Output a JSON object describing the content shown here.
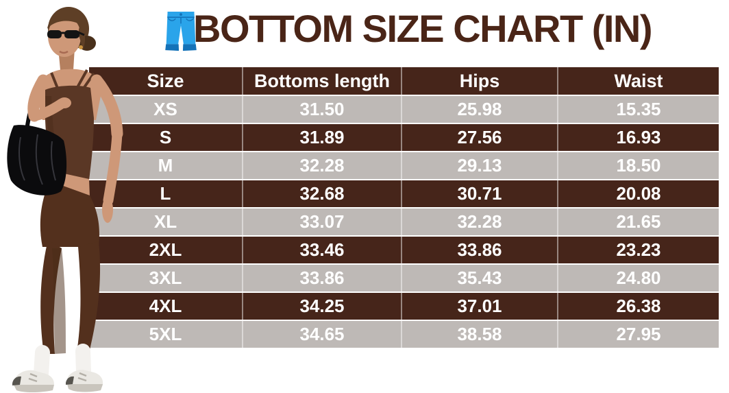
{
  "header": {
    "icon": "jeans-icon",
    "title": "BOTTOM SIZE CHART (IN)"
  },
  "chart_data": {
    "type": "table",
    "title": "BOTTOM SIZE CHART (IN)",
    "unit": "inches",
    "columns": [
      "Size",
      "Bottoms length",
      "Hips",
      "Waist"
    ],
    "rows": [
      [
        "XS",
        "31.50",
        "25.98",
        "15.35"
      ],
      [
        "S",
        "31.89",
        "27.56",
        "16.93"
      ],
      [
        "M",
        "32.28",
        "29.13",
        "18.50"
      ],
      [
        "L",
        "32.68",
        "30.71",
        "20.08"
      ],
      [
        "XL",
        "33.07",
        "32.28",
        "21.65"
      ],
      [
        "2XL",
        "33.46",
        "33.86",
        "23.23"
      ],
      [
        "3XL",
        "33.86",
        "35.43",
        "24.80"
      ],
      [
        "4XL",
        "34.25",
        "37.01",
        "26.38"
      ],
      [
        "5XL",
        "34.65",
        "38.58",
        "27.95"
      ]
    ]
  },
  "model_photo": {
    "alt": "Model with sunglasses and black shoulder bag wearing brown tank top, brown leggings, white socks and white sneakers"
  },
  "colors": {
    "title_text": "#4A2517",
    "row_dark": "#46251A",
    "row_light": "#BEB9B6",
    "table_text": "#FFFFFF",
    "jeans_blue": "#2AA4EA",
    "jeans_blue_dark": "#1472B8"
  }
}
